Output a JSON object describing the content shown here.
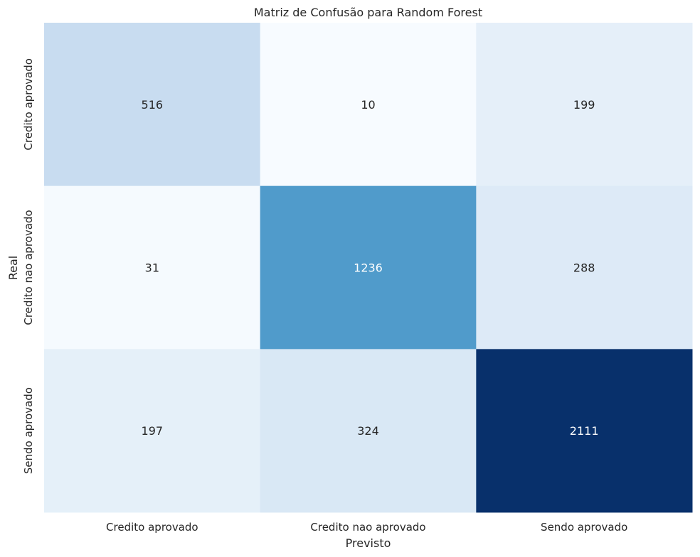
{
  "chart_data": {
    "type": "heatmap",
    "title": "Matriz de Confusão para Random Forest",
    "xlabel": "Previsto",
    "ylabel": "Real",
    "x_categories": [
      "Credito aprovado",
      "Credito nao aprovado",
      "Sendo aprovado"
    ],
    "y_categories": [
      "Credito aprovado",
      "Credito nao aprovado",
      "Sendo aprovado"
    ],
    "values": [
      [
        516,
        10,
        199
      ],
      [
        31,
        1236,
        288
      ],
      [
        197,
        324,
        2111
      ]
    ],
    "colormap": "Blues",
    "colorbar": false,
    "grid": false
  }
}
